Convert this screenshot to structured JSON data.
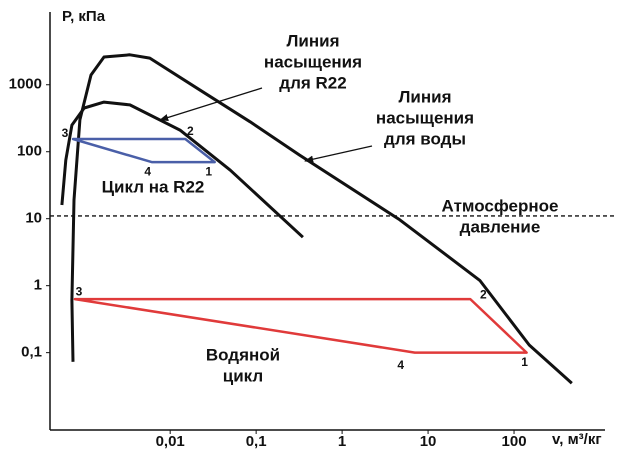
{
  "chart_data": {
    "type": "line",
    "x_label": "v, м³/кг",
    "y_label": "P, кПа",
    "log_x": true,
    "log_y": true,
    "xlim": [
      0.0004,
      1000
    ],
    "ylim": [
      0.007,
      11000
    ],
    "xticks": [
      {
        "value": 0.01,
        "label": "0,01"
      },
      {
        "value": 0.1,
        "label": "0,1"
      },
      1,
      10,
      100
    ],
    "yticks": [
      {
        "value": 0.1,
        "label": "0,1"
      },
      1,
      10,
      100,
      1000
    ],
    "series": [
      {
        "color": "#111111",
        "closed": false,
        "x": [
          0.00074,
          0.00072,
          0.00076,
          0.00089,
          0.0012,
          0.0017,
          0.0034,
          0.0058,
          0.022,
          0.085,
          0.32,
          4.7,
          40,
          150,
          470
        ],
        "values": [
          0.073,
          0.61,
          19,
          300,
          1400,
          2600,
          2800,
          2500,
          840,
          280,
          89,
          9.6,
          1.2,
          0.13,
          0.035
        ]
      },
      {
        "color": "#111111",
        "closed": false,
        "x": [
          0.00055,
          0.00061,
          0.00072,
          0.001,
          0.0017,
          0.0034,
          0.013,
          0.05,
          0.35
        ],
        "values": [
          16,
          75,
          250,
          450,
          550,
          500,
          210,
          53,
          5.3
        ]
      },
      {
        "color": "#4a5fa8",
        "closed": true,
        "x": [
          0.00074,
          0.015,
          0.033,
          0.0061
        ],
        "values": [
          155,
          155,
          70,
          70
        ],
        "point_labels": [
          "3",
          "2",
          "1",
          "4"
        ]
      },
      {
        "color": "#e03a3a",
        "closed": true,
        "x": [
          0.00078,
          31,
          140,
          7
        ],
        "values": [
          0.63,
          0.63,
          0.1,
          0.1
        ],
        "point_labels": [
          "3",
          "2",
          "1",
          "4"
        ]
      }
    ],
    "hline": {
      "value": 11,
      "color": "#111111",
      "dashed": true
    },
    "annotations": [
      [
        "Линия",
        "насыщения",
        "для R22"
      ],
      [
        "Линия",
        "насыщения",
        "для воды"
      ],
      [
        "Цикл на R22"
      ],
      [
        "Атмосферное",
        "давление"
      ],
      [
        "Водяной",
        "цикл"
      ]
    ]
  }
}
